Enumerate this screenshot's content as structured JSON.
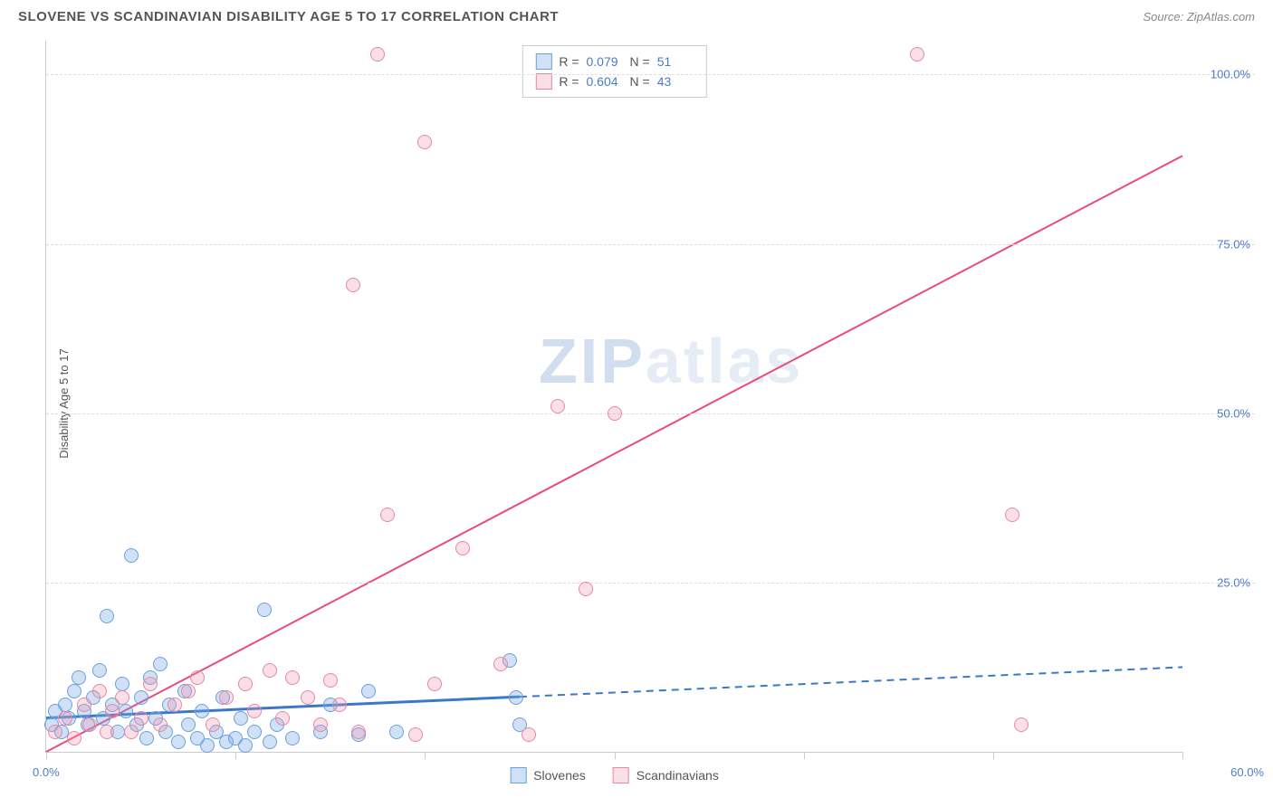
{
  "header": {
    "title": "SLOVENE VS SCANDINAVIAN DISABILITY AGE 5 TO 17 CORRELATION CHART",
    "source": "Source: ZipAtlas.com"
  },
  "ylabel": "Disability Age 5 to 17",
  "watermark": {
    "part1": "ZIP",
    "part2": "atlas"
  },
  "axes": {
    "xmin": 0,
    "xmax": 60,
    "ymin": 0,
    "ymax": 105,
    "x_label_min": "0.0%",
    "x_label_max": "60.0%",
    "y_ticks": [
      {
        "v": 25,
        "label": "25.0%"
      },
      {
        "v": 50,
        "label": "50.0%"
      },
      {
        "v": 75,
        "label": "75.0%"
      },
      {
        "v": 100,
        "label": "100.0%"
      }
    ],
    "x_tick_positions": [
      0,
      10,
      20,
      30,
      40,
      50,
      60
    ]
  },
  "series": [
    {
      "name": "Slovenes",
      "fill": "rgba(120,170,230,0.35)",
      "stroke": "#6aa0dd",
      "r_label": "R =",
      "r_value": "0.079",
      "n_label": "N =",
      "n_value": "51",
      "trend": {
        "x1": 0,
        "y1": 5.0,
        "x2": 60,
        "y2": 12.5,
        "solid_until_x": 25,
        "color": "#3b78c9",
        "width": 3
      },
      "points": [
        {
          "x": 0.3,
          "y": 4
        },
        {
          "x": 0.5,
          "y": 6
        },
        {
          "x": 0.8,
          "y": 3
        },
        {
          "x": 1.0,
          "y": 7
        },
        {
          "x": 1.2,
          "y": 5
        },
        {
          "x": 1.5,
          "y": 9
        },
        {
          "x": 1.7,
          "y": 11
        },
        {
          "x": 2.0,
          "y": 6
        },
        {
          "x": 2.2,
          "y": 4
        },
        {
          "x": 2.5,
          "y": 8
        },
        {
          "x": 2.8,
          "y": 12
        },
        {
          "x": 3.0,
          "y": 5
        },
        {
          "x": 3.2,
          "y": 20
        },
        {
          "x": 3.5,
          "y": 7
        },
        {
          "x": 3.8,
          "y": 3
        },
        {
          "x": 4.0,
          "y": 10
        },
        {
          "x": 4.2,
          "y": 6
        },
        {
          "x": 4.5,
          "y": 29
        },
        {
          "x": 4.8,
          "y": 4
        },
        {
          "x": 5.0,
          "y": 8
        },
        {
          "x": 5.3,
          "y": 2
        },
        {
          "x": 5.5,
          "y": 11
        },
        {
          "x": 5.8,
          "y": 5
        },
        {
          "x": 6.0,
          "y": 13
        },
        {
          "x": 6.3,
          "y": 3
        },
        {
          "x": 6.5,
          "y": 7
        },
        {
          "x": 7.0,
          "y": 1.5
        },
        {
          "x": 7.3,
          "y": 9
        },
        {
          "x": 7.5,
          "y": 4
        },
        {
          "x": 8.0,
          "y": 2
        },
        {
          "x": 8.2,
          "y": 6
        },
        {
          "x": 8.5,
          "y": 1
        },
        {
          "x": 9.0,
          "y": 3
        },
        {
          "x": 9.3,
          "y": 8
        },
        {
          "x": 9.5,
          "y": 1.5
        },
        {
          "x": 10.0,
          "y": 2
        },
        {
          "x": 10.3,
          "y": 5
        },
        {
          "x": 10.5,
          "y": 1
        },
        {
          "x": 11.0,
          "y": 3
        },
        {
          "x": 11.5,
          "y": 21
        },
        {
          "x": 11.8,
          "y": 1.5
        },
        {
          "x": 12.2,
          "y": 4
        },
        {
          "x": 13.0,
          "y": 2
        },
        {
          "x": 14.5,
          "y": 3
        },
        {
          "x": 15.0,
          "y": 7
        },
        {
          "x": 16.5,
          "y": 2.5
        },
        {
          "x": 17.0,
          "y": 9
        },
        {
          "x": 18.5,
          "y": 3
        },
        {
          "x": 24.5,
          "y": 13.5
        },
        {
          "x": 24.8,
          "y": 8
        },
        {
          "x": 25.0,
          "y": 4
        }
      ]
    },
    {
      "name": "Scandinavians",
      "fill": "rgba(240,150,175,0.30)",
      "stroke": "#e588a5",
      "r_label": "R =",
      "r_value": "0.604",
      "n_label": "N =",
      "n_value": "43",
      "trend": {
        "x1": 0,
        "y1": 0,
        "x2": 60,
        "y2": 88,
        "solid_until_x": 60,
        "color": "#e94b7a",
        "width": 2
      },
      "points": [
        {
          "x": 0.5,
          "y": 3
        },
        {
          "x": 1.0,
          "y": 5
        },
        {
          "x": 1.5,
          "y": 2
        },
        {
          "x": 2.0,
          "y": 7
        },
        {
          "x": 2.3,
          "y": 4
        },
        {
          "x": 2.8,
          "y": 9
        },
        {
          "x": 3.2,
          "y": 3
        },
        {
          "x": 3.5,
          "y": 6
        },
        {
          "x": 4.0,
          "y": 8
        },
        {
          "x": 4.5,
          "y": 3
        },
        {
          "x": 5.0,
          "y": 5
        },
        {
          "x": 5.5,
          "y": 10
        },
        {
          "x": 6.0,
          "y": 4
        },
        {
          "x": 6.8,
          "y": 7
        },
        {
          "x": 7.5,
          "y": 9
        },
        {
          "x": 8.0,
          "y": 11
        },
        {
          "x": 8.8,
          "y": 4
        },
        {
          "x": 9.5,
          "y": 8
        },
        {
          "x": 10.5,
          "y": 10
        },
        {
          "x": 11.0,
          "y": 6
        },
        {
          "x": 11.8,
          "y": 12
        },
        {
          "x": 12.5,
          "y": 5
        },
        {
          "x": 13.0,
          "y": 11
        },
        {
          "x": 13.8,
          "y": 8
        },
        {
          "x": 14.5,
          "y": 4
        },
        {
          "x": 15.0,
          "y": 10.5
        },
        {
          "x": 15.5,
          "y": 7
        },
        {
          "x": 16.2,
          "y": 69
        },
        {
          "x": 16.5,
          "y": 3
        },
        {
          "x": 17.5,
          "y": 103
        },
        {
          "x": 18.0,
          "y": 35
        },
        {
          "x": 19.5,
          "y": 2.5
        },
        {
          "x": 20.0,
          "y": 90
        },
        {
          "x": 20.5,
          "y": 10
        },
        {
          "x": 22.0,
          "y": 30
        },
        {
          "x": 24.0,
          "y": 13
        },
        {
          "x": 25.5,
          "y": 2.5
        },
        {
          "x": 27.0,
          "y": 51
        },
        {
          "x": 28.5,
          "y": 24
        },
        {
          "x": 30.0,
          "y": 50
        },
        {
          "x": 46.0,
          "y": 103
        },
        {
          "x": 51.0,
          "y": 35
        },
        {
          "x": 51.5,
          "y": 4
        }
      ]
    }
  ],
  "legend_bottom": [
    {
      "label": "Slovenes"
    },
    {
      "label": "Scandinavians"
    }
  ]
}
